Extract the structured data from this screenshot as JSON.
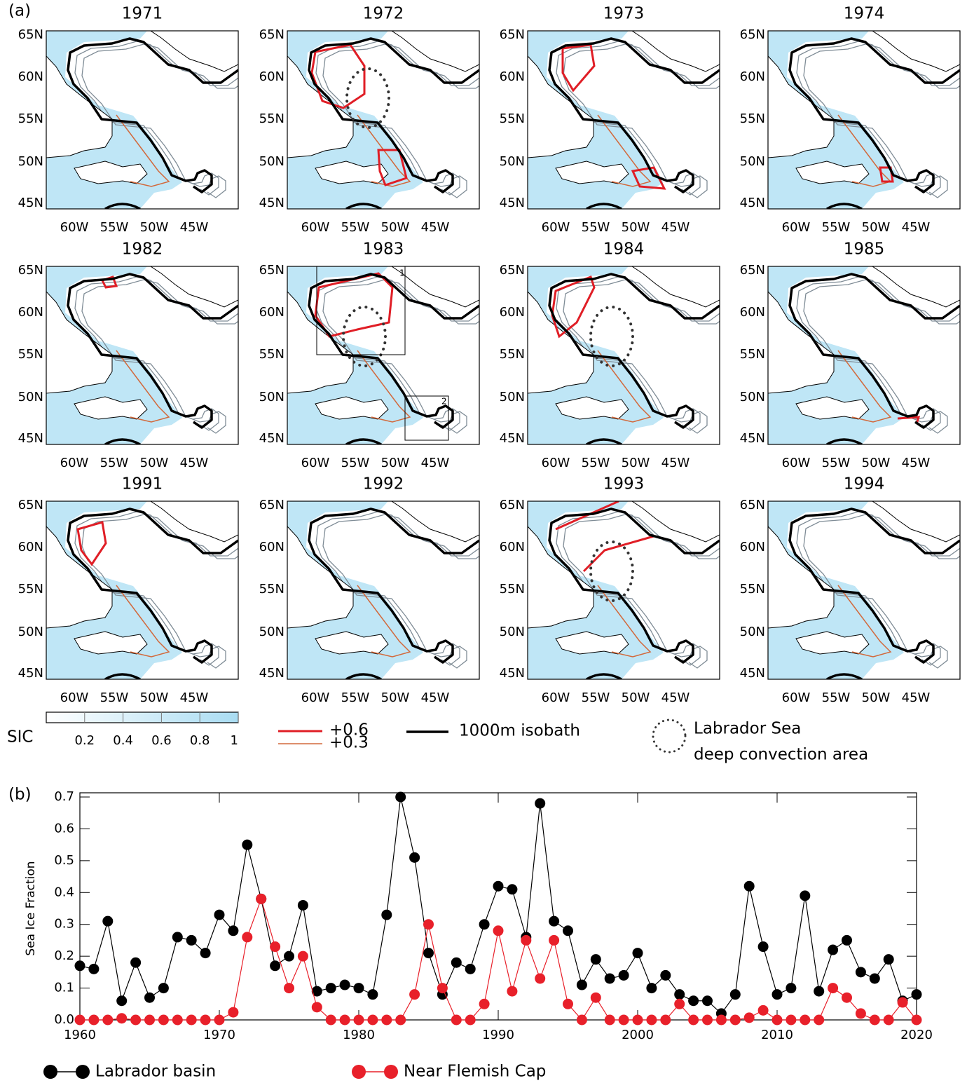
{
  "figure_a": {
    "label": "(a)",
    "panels": [
      {
        "title": "1971"
      },
      {
        "title": "1972"
      },
      {
        "title": "1973"
      },
      {
        "title": "1974"
      },
      {
        "title": "1982"
      },
      {
        "title": "1983"
      },
      {
        "title": "1984"
      },
      {
        "title": "1985"
      },
      {
        "title": "1991"
      },
      {
        "title": "1992"
      },
      {
        "title": "1993"
      },
      {
        "title": "1994"
      }
    ],
    "lat_labels": [
      "65N",
      "60N",
      "55N",
      "50N",
      "45N"
    ],
    "lon_labels": [
      "60W",
      "55W",
      "50W",
      "45W"
    ],
    "box_labels": [
      "1",
      "2"
    ],
    "colorbar": {
      "label": "SIC",
      "lim": [
        0,
        1
      ],
      "ticks": [
        0.2,
        0.4,
        0.6,
        0.8,
        1
      ]
    },
    "legend": {
      "strong": "+0.6",
      "weak": "+0.3",
      "isobath": "1000m isobath",
      "convection": [
        "Labrador Sea",
        "deep convection area"
      ]
    }
  },
  "chart_data": {
    "type": "line",
    "label": "(b)",
    "ylabel": "Sea Ice Fraction",
    "x": [
      1960,
      1961,
      1962,
      1963,
      1964,
      1965,
      1966,
      1967,
      1968,
      1969,
      1970,
      1971,
      1972,
      1973,
      1974,
      1975,
      1976,
      1977,
      1978,
      1979,
      1980,
      1981,
      1982,
      1983,
      1984,
      1985,
      1986,
      1987,
      1988,
      1989,
      1990,
      1991,
      1992,
      1993,
      1994,
      1995,
      1996,
      1997,
      1998,
      1999,
      2000,
      2001,
      2002,
      2003,
      2004,
      2005,
      2006,
      2007,
      2008,
      2009,
      2010,
      2011,
      2012,
      2013,
      2014,
      2015,
      2016,
      2017,
      2018,
      2019,
      2020
    ],
    "xlim": [
      1960,
      2020
    ],
    "xticks": [
      1960,
      1970,
      1980,
      1990,
      2000,
      2010,
      2020
    ],
    "ylim": [
      0,
      0.7
    ],
    "yticks": [
      {
        "value": 0,
        "label": "0.0"
      },
      0.1,
      0.2,
      0.3,
      0.4,
      0.5,
      0.6,
      0.7
    ],
    "series": [
      {
        "name": "Labrador basin",
        "color": "#000000",
        "values": [
          0.17,
          0.16,
          0.31,
          0.06,
          0.18,
          0.07,
          0.1,
          0.26,
          0.25,
          0.21,
          0.33,
          0.28,
          0.55,
          0.38,
          0.17,
          0.2,
          0.36,
          0.09,
          0.1,
          0.11,
          0.1,
          0.08,
          0.33,
          0.7,
          0.51,
          0.21,
          0.08,
          0.18,
          0.16,
          0.3,
          0.42,
          0.41,
          0.26,
          0.68,
          0.31,
          0.28,
          0.11,
          0.19,
          0.13,
          0.14,
          0.21,
          0.1,
          0.14,
          0.08,
          0.06,
          0.06,
          0.02,
          0.08,
          0.42,
          0.23,
          0.08,
          0.1,
          0.39,
          0.09,
          0.22,
          0.25,
          0.15,
          0.13,
          0.19,
          0.06,
          0.08
        ]
      },
      {
        "name": "Near Flemish Cap",
        "color": "#e8202a",
        "values": [
          0,
          0,
          0,
          0.005,
          0,
          0,
          0,
          0,
          0,
          0,
          0,
          0.024,
          0.26,
          0.38,
          0.23,
          0.1,
          0.2,
          0.04,
          0,
          0,
          0,
          0,
          0,
          0,
          0.08,
          0.3,
          0.1,
          0,
          0,
          0.05,
          0.28,
          0.09,
          0.25,
          0.13,
          0.25,
          0.05,
          0,
          0.07,
          0,
          0,
          0,
          0,
          0,
          0.05,
          0,
          0,
          0,
          0,
          0.007,
          0.03,
          0,
          0,
          0,
          0,
          0.1,
          0.07,
          0.02,
          0,
          0,
          0.055,
          0
        ]
      }
    ]
  }
}
